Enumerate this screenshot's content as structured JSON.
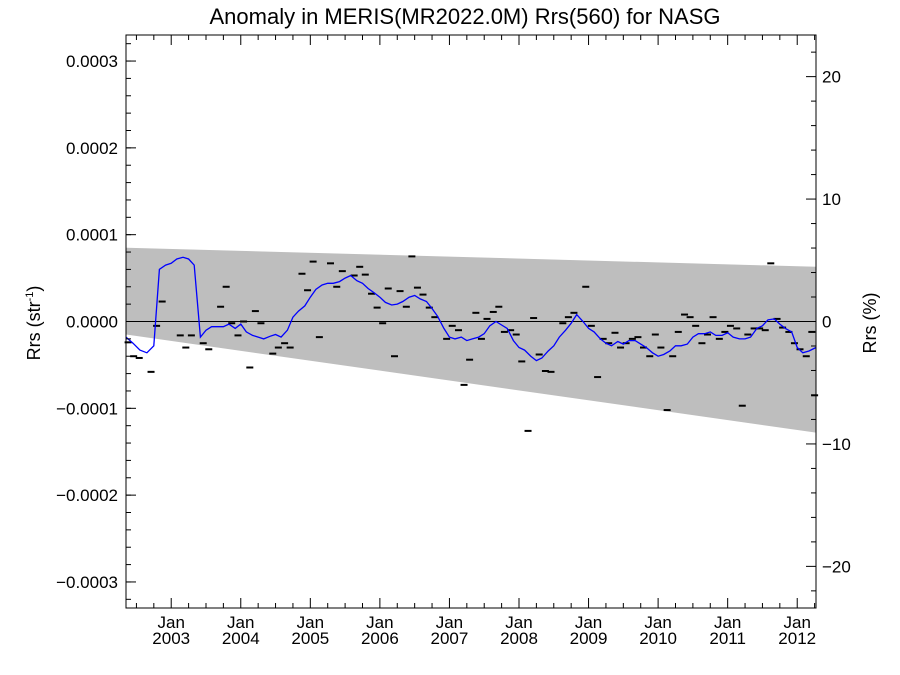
{
  "chart_data": {
    "type": "scatter",
    "title": "Anomaly in MERIS(MR2022.0M) Rrs(560) for NASG",
    "ylabel_left": "Rrs (str",
    "ylabel_left_sup": "-1",
    "ylabel_left_end": ")",
    "ylabel_right": "Rrs (%)",
    "xlim": [
      2002.35,
      2012.27
    ],
    "ylim_left": [
      -0.00033,
      0.00033
    ],
    "ylim_right": [
      -23.4,
      23.4
    ],
    "x_ticks": [
      {
        "x": 2003.0,
        "month": "Jan",
        "year": "2003"
      },
      {
        "x": 2004.0,
        "month": "Jan",
        "year": "2004"
      },
      {
        "x": 2005.0,
        "month": "Jan",
        "year": "2005"
      },
      {
        "x": 2006.0,
        "month": "Jan",
        "year": "2006"
      },
      {
        "x": 2007.0,
        "month": "Jan",
        "year": "2007"
      },
      {
        "x": 2008.0,
        "month": "Jan",
        "year": "2008"
      },
      {
        "x": 2009.0,
        "month": "Jan",
        "year": "2009"
      },
      {
        "x": 2010.0,
        "month": "Jan",
        "year": "2010"
      },
      {
        "x": 2011.0,
        "month": "Jan",
        "year": "2011"
      },
      {
        "x": 2012.0,
        "month": "Jan",
        "year": "2012"
      }
    ],
    "y_ticks_left": [
      {
        "v": 0.0003,
        "label": "0.0003"
      },
      {
        "v": 0.0002,
        "label": "0.0002"
      },
      {
        "v": 0.0001,
        "label": "0.0001"
      },
      {
        "v": 0.0,
        "label": "0.0000"
      },
      {
        "v": -0.0001,
        "label": "−0.0001"
      },
      {
        "v": -0.0002,
        "label": "−0.0002"
      },
      {
        "v": -0.0003,
        "label": "−0.0003"
      }
    ],
    "y_ticks_right": [
      {
        "v": 20,
        "label": "20"
      },
      {
        "v": 10,
        "label": "10"
      },
      {
        "v": 0,
        "label": "0"
      },
      {
        "v": -10,
        "label": "−10"
      },
      {
        "v": -20,
        "label": "−20"
      }
    ],
    "band": {
      "upper": [
        [
          2002.35,
          8.5e-05
        ],
        [
          2012.27,
          6.3e-05
        ]
      ],
      "lower": [
        [
          2002.35,
          -1.5e-05
        ],
        [
          2012.27,
          -0.000128
        ]
      ],
      "color": "#bebebe"
    },
    "zero_line": 0.0,
    "smoothed_series": {
      "color": "#0000ff",
      "points": [
        [
          2002.35,
          -1.8e-05
        ],
        [
          2002.45,
          -2.5e-05
        ],
        [
          2002.55,
          -3.3e-05
        ],
        [
          2002.65,
          -3.6e-05
        ],
        [
          2002.75,
          -2.8e-05
        ],
        [
          2002.83,
          6e-05
        ],
        [
          2002.92,
          6.5e-05
        ],
        [
          2003.0,
          6.7e-05
        ],
        [
          2003.08,
          7.2e-05
        ],
        [
          2003.17,
          7.4e-05
        ],
        [
          2003.25,
          7.2e-05
        ],
        [
          2003.33,
          6.5e-05
        ],
        [
          2003.42,
          -1.8e-05
        ],
        [
          2003.5,
          -1e-05
        ],
        [
          2003.58,
          -6e-06
        ],
        [
          2003.67,
          -6e-06
        ],
        [
          2003.75,
          -6e-06
        ],
        [
          2003.83,
          -3e-06
        ],
        [
          2003.92,
          -8e-06
        ],
        [
          2004.0,
          -3e-06
        ],
        [
          2004.08,
          -1.2e-05
        ],
        [
          2004.17,
          -1.6e-05
        ],
        [
          2004.25,
          -1.8e-05
        ],
        [
          2004.33,
          -2e-05
        ],
        [
          2004.42,
          -1.7e-05
        ],
        [
          2004.5,
          -1.5e-05
        ],
        [
          2004.58,
          -1.8e-05
        ],
        [
          2004.67,
          -1e-05
        ],
        [
          2004.75,
          5e-06
        ],
        [
          2004.83,
          1.2e-05
        ],
        [
          2004.92,
          1.8e-05
        ],
        [
          2005.0,
          2.8e-05
        ],
        [
          2005.08,
          3.7e-05
        ],
        [
          2005.17,
          4.2e-05
        ],
        [
          2005.25,
          4.4e-05
        ],
        [
          2005.33,
          4.4e-05
        ],
        [
          2005.42,
          4.6e-05
        ],
        [
          2005.5,
          5e-05
        ],
        [
          2005.58,
          5.3e-05
        ],
        [
          2005.67,
          4.7e-05
        ],
        [
          2005.75,
          4.4e-05
        ],
        [
          2005.83,
          3.8e-05
        ],
        [
          2005.92,
          3.3e-05
        ],
        [
          2006.0,
          2.8e-05
        ],
        [
          2006.08,
          2.2e-05
        ],
        [
          2006.17,
          1.9e-05
        ],
        [
          2006.25,
          2e-05
        ],
        [
          2006.33,
          2.3e-05
        ],
        [
          2006.42,
          2.8e-05
        ],
        [
          2006.5,
          3e-05
        ],
        [
          2006.58,
          2.6e-05
        ],
        [
          2006.67,
          2.3e-05
        ],
        [
          2006.75,
          1.5e-05
        ],
        [
          2006.83,
          6e-06
        ],
        [
          2006.92,
          -8e-06
        ],
        [
          2007.0,
          -1.8e-05
        ],
        [
          2007.08,
          -2e-05
        ],
        [
          2007.17,
          -1.8e-05
        ],
        [
          2007.25,
          -2.2e-05
        ],
        [
          2007.33,
          -2e-05
        ],
        [
          2007.42,
          -1.8e-05
        ],
        [
          2007.5,
          -1.4e-05
        ],
        [
          2007.58,
          -5e-06
        ],
        [
          2007.67,
          0.0
        ],
        [
          2007.75,
          -4e-06
        ],
        [
          2007.83,
          -8e-06
        ],
        [
          2007.92,
          -2.2e-05
        ],
        [
          2008.0,
          -3e-05
        ],
        [
          2008.08,
          -3.3e-05
        ],
        [
          2008.17,
          -4e-05
        ],
        [
          2008.25,
          -4.5e-05
        ],
        [
          2008.33,
          -4.2e-05
        ],
        [
          2008.42,
          -3.4e-05
        ],
        [
          2008.5,
          -2.8e-05
        ],
        [
          2008.58,
          -1.8e-05
        ],
        [
          2008.67,
          -1e-05
        ],
        [
          2008.75,
          -2e-06
        ],
        [
          2008.83,
          8e-06
        ],
        [
          2008.92,
          0.0
        ],
        [
          2009.0,
          -8e-06
        ],
        [
          2009.08,
          -1.2e-05
        ],
        [
          2009.17,
          -2e-05
        ],
        [
          2009.25,
          -2.5e-05
        ],
        [
          2009.33,
          -2.8e-05
        ],
        [
          2009.42,
          -2.3e-05
        ],
        [
          2009.5,
          -2.6e-05
        ],
        [
          2009.58,
          -2.2e-05
        ],
        [
          2009.67,
          -2.2e-05
        ],
        [
          2009.75,
          -2.6e-05
        ],
        [
          2009.83,
          -3e-05
        ],
        [
          2009.92,
          -3.6e-05
        ],
        [
          2010.0,
          -4e-05
        ],
        [
          2010.08,
          -3.8e-05
        ],
        [
          2010.17,
          -3.4e-05
        ],
        [
          2010.25,
          -2.8e-05
        ],
        [
          2010.33,
          -2.8e-05
        ],
        [
          2010.42,
          -2.6e-05
        ],
        [
          2010.5,
          -1.8e-05
        ],
        [
          2010.58,
          -1.4e-05
        ],
        [
          2010.67,
          -1.4e-05
        ],
        [
          2010.75,
          -1.2e-05
        ],
        [
          2010.83,
          -1.6e-05
        ],
        [
          2010.92,
          -1.6e-05
        ],
        [
          2011.0,
          -1.3e-05
        ],
        [
          2011.08,
          -1.8e-05
        ],
        [
          2011.17,
          -2e-05
        ],
        [
          2011.25,
          -2e-05
        ],
        [
          2011.33,
          -1.8e-05
        ],
        [
          2011.42,
          -8e-06
        ],
        [
          2011.5,
          -5e-06
        ],
        [
          2011.58,
          2e-06
        ],
        [
          2011.67,
          3e-06
        ],
        [
          2011.75,
          -3e-06
        ],
        [
          2011.83,
          -8e-06
        ],
        [
          2011.92,
          -1.2e-05
        ],
        [
          2012.0,
          -3e-05
        ],
        [
          2012.08,
          -3.6e-05
        ],
        [
          2012.17,
          -3.4e-05
        ],
        [
          2012.27,
          -3e-05
        ]
      ]
    },
    "monthly_points": [
      [
        2002.38,
        -2.4e-05
      ],
      [
        2002.46,
        -4e-05
      ],
      [
        2002.54,
        -4.2e-05
      ],
      [
        2002.71,
        -5.8e-05
      ],
      [
        2002.79,
        -5e-06
      ],
      [
        2002.87,
        2.3e-05
      ],
      [
        2003.13,
        -1.6e-05
      ],
      [
        2003.21,
        -3e-05
      ],
      [
        2003.29,
        -1.6e-05
      ],
      [
        2003.46,
        -2.5e-05
      ],
      [
        2003.54,
        -3.2e-05
      ],
      [
        2003.71,
        1.7e-05
      ],
      [
        2003.79,
        4e-05
      ],
      [
        2003.87,
        -2e-06
      ],
      [
        2003.96,
        -1.6e-05
      ],
      [
        2004.04,
        0.0
      ],
      [
        2004.13,
        -5.3e-05
      ],
      [
        2004.21,
        1.2e-05
      ],
      [
        2004.29,
        -2e-06
      ],
      [
        2004.46,
        -3.7e-05
      ],
      [
        2004.54,
        -3e-05
      ],
      [
        2004.63,
        -2.5e-05
      ],
      [
        2004.71,
        -3e-05
      ],
      [
        2004.88,
        5.5e-05
      ],
      [
        2004.96,
        3.6e-05
      ],
      [
        2005.04,
        6.9e-05
      ],
      [
        2005.13,
        -1.8e-05
      ],
      [
        2005.29,
        6.7e-05
      ],
      [
        2005.38,
        4e-05
      ],
      [
        2005.46,
        5.8e-05
      ],
      [
        2005.63,
        5.3e-05
      ],
      [
        2005.71,
        6.3e-05
      ],
      [
        2005.79,
        5.4e-05
      ],
      [
        2005.88,
        3.2e-05
      ],
      [
        2005.96,
        1.6e-05
      ],
      [
        2006.04,
        -2e-06
      ],
      [
        2006.12,
        3.8e-05
      ],
      [
        2006.21,
        -4e-05
      ],
      [
        2006.29,
        3.5e-05
      ],
      [
        2006.38,
        1.7e-05
      ],
      [
        2006.46,
        7.5e-05
      ],
      [
        2006.54,
        3.9e-05
      ],
      [
        2006.62,
        3.1e-05
      ],
      [
        2006.71,
        1.6e-05
      ],
      [
        2006.79,
        5e-06
      ],
      [
        2006.96,
        -2e-05
      ],
      [
        2007.04,
        -5e-06
      ],
      [
        2007.13,
        -1e-05
      ],
      [
        2007.21,
        -7.3e-05
      ],
      [
        2007.29,
        -4.4e-05
      ],
      [
        2007.38,
        1e-05
      ],
      [
        2007.46,
        -2e-05
      ],
      [
        2007.54,
        3e-06
      ],
      [
        2007.63,
        1.1e-05
      ],
      [
        2007.71,
        1.7e-05
      ],
      [
        2007.79,
        -1.2e-05
      ],
      [
        2007.88,
        -1e-05
      ],
      [
        2007.96,
        -1.5e-05
      ],
      [
        2008.04,
        -4.6e-05
      ],
      [
        2008.13,
        -0.000126
      ],
      [
        2008.21,
        4e-06
      ],
      [
        2008.29,
        -3.8e-05
      ],
      [
        2008.38,
        -5.7e-05
      ],
      [
        2008.46,
        -5.8e-05
      ],
      [
        2008.63,
        -2e-06
      ],
      [
        2008.71,
        5e-06
      ],
      [
        2008.79,
        1e-05
      ],
      [
        2008.96,
        4e-05
      ],
      [
        2009.04,
        -5e-06
      ],
      [
        2009.13,
        -6.4e-05
      ],
      [
        2009.21,
        -2e-05
      ],
      [
        2009.29,
        -2.5e-05
      ],
      [
        2009.38,
        -1.3e-05
      ],
      [
        2009.46,
        -3e-05
      ],
      [
        2009.54,
        -2.5e-05
      ],
      [
        2009.63,
        -2e-05
      ],
      [
        2009.71,
        -1.8e-05
      ],
      [
        2009.79,
        -3e-05
      ],
      [
        2009.88,
        -4e-05
      ],
      [
        2009.96,
        -1.5e-05
      ],
      [
        2010.04,
        -3e-05
      ],
      [
        2010.13,
        -0.000102
      ],
      [
        2010.21,
        -4e-05
      ],
      [
        2010.29,
        -1.2e-05
      ],
      [
        2010.38,
        8e-06
      ],
      [
        2010.46,
        5e-06
      ],
      [
        2010.54,
        -5e-06
      ],
      [
        2010.63,
        -2.5e-05
      ],
      [
        2010.71,
        -1.5e-05
      ],
      [
        2010.79,
        5e-06
      ],
      [
        2010.88,
        -2e-05
      ],
      [
        2010.96,
        -1.2e-05
      ],
      [
        2011.04,
        -5e-06
      ],
      [
        2011.13,
        -8e-06
      ],
      [
        2011.21,
        -9.7e-05
      ],
      [
        2011.29,
        -1.5e-05
      ],
      [
        2011.38,
        -8e-06
      ],
      [
        2011.46,
        -8e-06
      ],
      [
        2011.54,
        -1e-05
      ],
      [
        2011.62,
        6.7e-05
      ],
      [
        2011.71,
        3e-06
      ],
      [
        2011.79,
        -7e-06
      ],
      [
        2011.88,
        -1.2e-05
      ],
      [
        2011.96,
        -2.5e-05
      ],
      [
        2012.04,
        -3.2e-05
      ],
      [
        2012.13,
        -4e-05
      ],
      [
        2012.21,
        -1.2e-05
      ],
      [
        2012.25,
        -8.5e-05
      ]
    ]
  }
}
